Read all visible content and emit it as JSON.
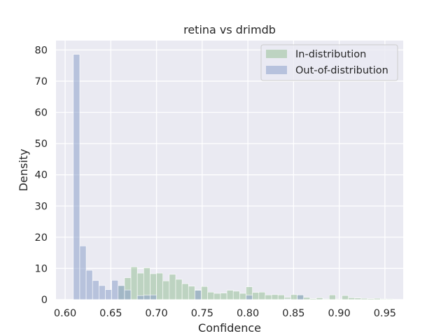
{
  "chart_data": {
    "type": "bar",
    "title": "retina vs drimdb",
    "xlabel": "Confidence",
    "ylabel": "Density",
    "xlim": [
      0.59,
      0.97
    ],
    "ylim": [
      0,
      83
    ],
    "xticks": [
      "0.60",
      "0.65",
      "0.70",
      "0.75",
      "0.80",
      "0.85",
      "0.90",
      "0.95"
    ],
    "yticks": [
      "0",
      "10",
      "20",
      "30",
      "40",
      "50",
      "60",
      "70",
      "80"
    ],
    "grid": true,
    "legend_position": "top-right",
    "bin_width": 0.007,
    "background_color": "#eaeaf2",
    "series": [
      {
        "name": "In-distribution",
        "color": "#8fbc8f",
        "opacity": 0.5,
        "x": [
          0.6615,
          0.6685,
          0.6755,
          0.6825,
          0.6895,
          0.6965,
          0.7035,
          0.7105,
          0.7175,
          0.7245,
          0.7315,
          0.7385,
          0.7455,
          0.7525,
          0.7595,
          0.7665,
          0.7735,
          0.7805,
          0.7875,
          0.7945,
          0.8015,
          0.8085,
          0.8155,
          0.8225,
          0.8295,
          0.8365,
          0.8435,
          0.8505,
          0.8575,
          0.8645,
          0.8715,
          0.8785,
          0.8855,
          0.8925,
          0.8995,
          0.9065,
          0.9135,
          0.9205,
          0.9275,
          0.9345,
          0.9415,
          0.9485,
          0.9555
        ],
        "values": [
          4.5,
          7.0,
          10.5,
          8.5,
          10.2,
          8.3,
          8.5,
          6.0,
          8.1,
          6.5,
          5.1,
          4.3,
          3.1,
          4.2,
          2.4,
          2.0,
          2.1,
          3.0,
          2.7,
          2.0,
          4.1,
          2.3,
          2.4,
          1.5,
          1.6,
          1.5,
          0.7,
          1.6,
          1.5,
          0.7,
          0.3,
          0.6,
          0.2,
          1.5,
          0.2,
          1.3,
          0.6,
          0.5,
          0.4,
          0.3,
          0.4,
          0.2,
          0.2
        ]
      },
      {
        "name": "Out-of-distribution",
        "color": "#8da0cb",
        "opacity": 0.55,
        "x": [
          0.6125,
          0.6195,
          0.6265,
          0.6335,
          0.6405,
          0.6475,
          0.6545,
          0.6615,
          0.6685,
          0.6755,
          0.6825,
          0.6895,
          0.6965,
          0.7455,
          0.8015,
          0.8435,
          0.8575
        ],
        "values": [
          78.6,
          17.2,
          9.4,
          6.1,
          4.5,
          3.2,
          6.2,
          4.5,
          3.1,
          0,
          1.3,
          1.4,
          1.5,
          3.0,
          1.4,
          0.2,
          1.5
        ]
      }
    ]
  }
}
